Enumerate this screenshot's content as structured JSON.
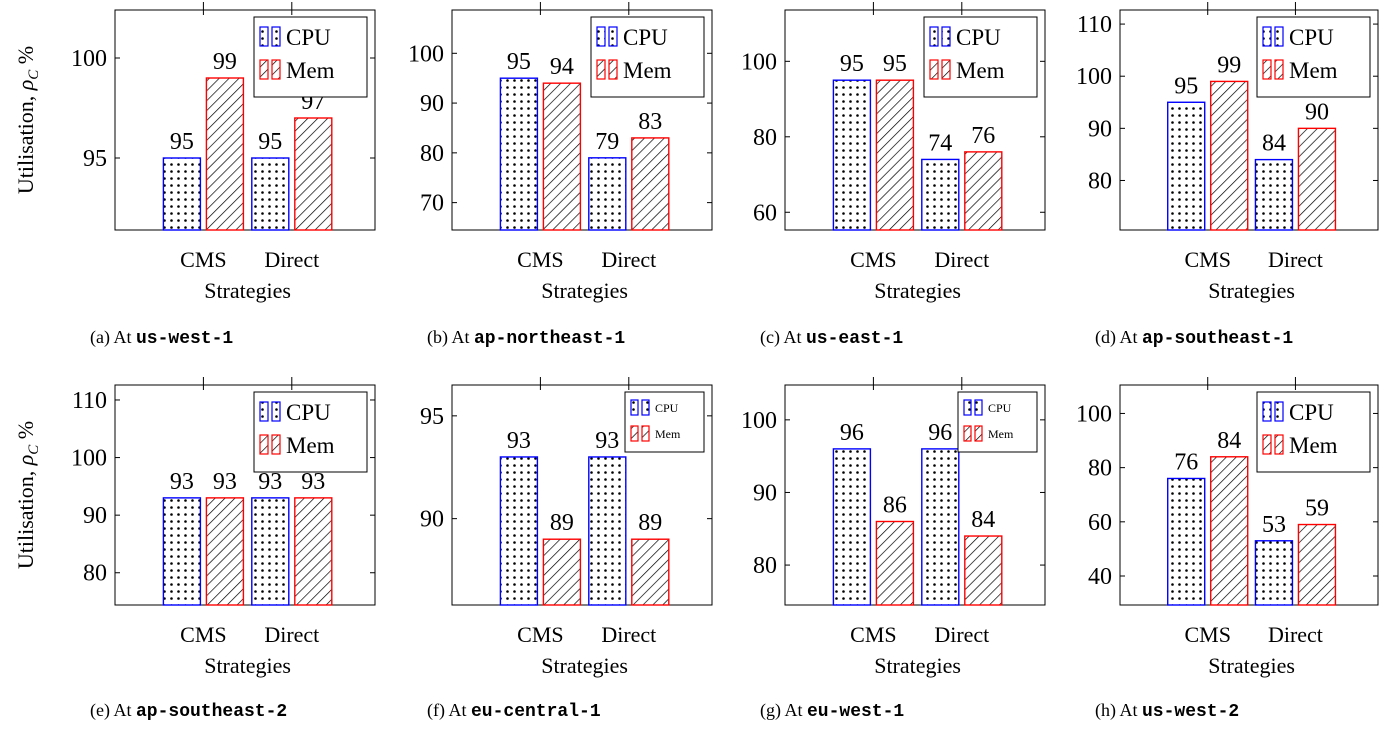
{
  "figure": {
    "y_axis_label_prefix": "Utilisation, ",
    "y_axis_label_symbol": "ρ",
    "y_axis_label_subscript": "C",
    "y_axis_label_suffix": " %",
    "x_axis_label": "Strategies",
    "caption_prefix": "At ",
    "colors": {
      "cpu": "#0000ff",
      "mem": "#ff0000",
      "axis": "#000000"
    }
  },
  "chart_data": [
    {
      "type": "bar",
      "caption_id": "(a)",
      "caption_region": "us-west-1",
      "categories": [
        "CMS",
        "Direct"
      ],
      "series": [
        {
          "name": "CPU",
          "values": [
            95,
            95
          ]
        },
        {
          "name": "Mem",
          "values": [
            99,
            97
          ]
        }
      ],
      "ylim": [
        91.4,
        102.4
      ],
      "yticks": [
        95,
        100
      ],
      "xlabel": "Strategies",
      "legend": "top-right",
      "legend_size": "large",
      "show_ylabel": true
    },
    {
      "type": "bar",
      "caption_id": "(b)",
      "caption_region": "ap-northeast-1",
      "categories": [
        "CMS",
        "Direct"
      ],
      "series": [
        {
          "name": "CPU",
          "values": [
            95,
            79
          ]
        },
        {
          "name": "Mem",
          "values": [
            94,
            83
          ]
        }
      ],
      "ylim": [
        64.5,
        108.7
      ],
      "yticks": [
        70,
        80,
        90,
        100
      ],
      "xlabel": "Strategies",
      "legend": "top-right",
      "legend_size": "large",
      "show_ylabel": false
    },
    {
      "type": "bar",
      "caption_id": "(c)",
      "caption_region": "us-east-1",
      "categories": [
        "CMS",
        "Direct"
      ],
      "series": [
        {
          "name": "CPU",
          "values": [
            95,
            74
          ]
        },
        {
          "name": "Mem",
          "values": [
            95,
            76
          ]
        }
      ],
      "ylim": [
        55.3,
        113.6
      ],
      "yticks": [
        60,
        80,
        100
      ],
      "xlabel": "Strategies",
      "legend": "top-right",
      "legend_size": "large",
      "show_ylabel": false
    },
    {
      "type": "bar",
      "caption_id": "(d)",
      "caption_region": "ap-southeast-1",
      "categories": [
        "CMS",
        "Direct"
      ],
      "series": [
        {
          "name": "CPU",
          "values": [
            95,
            84
          ]
        },
        {
          "name": "Mem",
          "values": [
            99,
            90
          ]
        }
      ],
      "ylim": [
        70.5,
        112.7
      ],
      "yticks": [
        80,
        90,
        100,
        110
      ],
      "xlabel": "Strategies",
      "legend": "top-right",
      "legend_size": "large",
      "show_ylabel": false
    },
    {
      "type": "bar",
      "caption_id": "(e)",
      "caption_region": "ap-southeast-2",
      "categories": [
        "CMS",
        "Direct"
      ],
      "series": [
        {
          "name": "CPU",
          "values": [
            93,
            93
          ]
        },
        {
          "name": "Mem",
          "values": [
            93,
            93
          ]
        }
      ],
      "ylim": [
        74.4,
        112.6
      ],
      "yticks": [
        80,
        90,
        100,
        110
      ],
      "xlabel": "Strategies",
      "legend": "top-right",
      "legend_size": "large",
      "show_ylabel": true
    },
    {
      "type": "bar",
      "caption_id": "(f)",
      "caption_region": "eu-central-1",
      "categories": [
        "CMS",
        "Direct"
      ],
      "series": [
        {
          "name": "CPU",
          "values": [
            93,
            93
          ]
        },
        {
          "name": "Mem",
          "values": [
            89,
            89
          ]
        }
      ],
      "ylim": [
        85.8,
        96.5
      ],
      "yticks": [
        90,
        95
      ],
      "xlabel": "Strategies",
      "legend": "top-right",
      "legend_size": "small",
      "show_ylabel": false
    },
    {
      "type": "bar",
      "caption_id": "(g)",
      "caption_region": "eu-west-1",
      "categories": [
        "CMS",
        "Direct"
      ],
      "series": [
        {
          "name": "CPU",
          "values": [
            96,
            96
          ]
        },
        {
          "name": "Mem",
          "values": [
            86,
            84
          ]
        }
      ],
      "ylim": [
        74.5,
        104.8
      ],
      "yticks": [
        80,
        90,
        100
      ],
      "xlabel": "Strategies",
      "legend": "top-right",
      "legend_size": "small",
      "show_ylabel": false
    },
    {
      "type": "bar",
      "caption_id": "(h)",
      "caption_region": "us-west-2",
      "categories": [
        "CMS",
        "Direct"
      ],
      "series": [
        {
          "name": "CPU",
          "values": [
            76,
            53
          ]
        },
        {
          "name": "Mem",
          "values": [
            84,
            59
          ]
        }
      ],
      "ylim": [
        29.3,
        110.5
      ],
      "yticks": [
        40,
        60,
        80,
        100
      ],
      "xlabel": "Strategies",
      "legend": "top-right",
      "legend_size": "large",
      "show_ylabel": false
    }
  ]
}
